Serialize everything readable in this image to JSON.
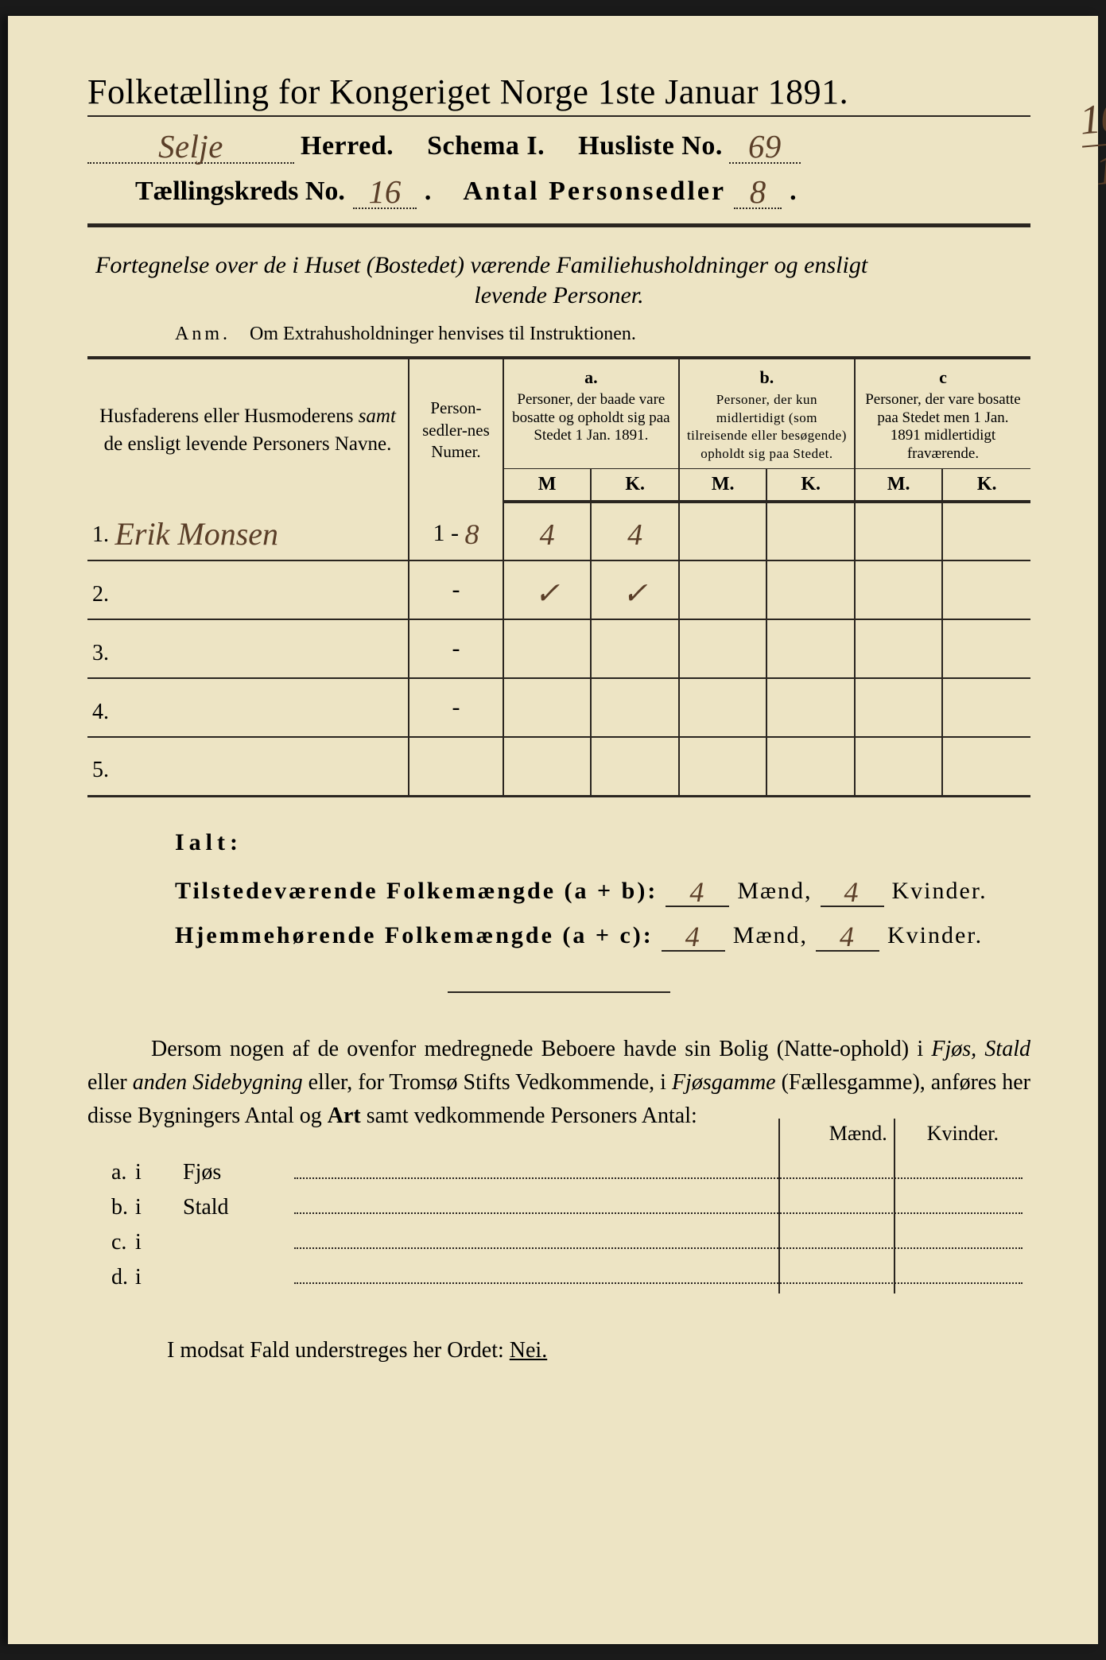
{
  "colors": {
    "paper": "#ede4c4",
    "ink": "#2a2520",
    "handwriting": "#5a3e28",
    "page_outer": "#1a1a1a"
  },
  "typography": {
    "title_fontsize_pt": 44,
    "header_fontsize_pt": 34,
    "body_fontsize_pt": 28,
    "table_header_fontsize_pt": 20,
    "font_family": "Times New Roman / antiqua serif",
    "handwriting_family": "cursive script"
  },
  "title": "Folketælling for Kongeriget Norge 1ste Januar 1891.",
  "header": {
    "herred_handwritten": "Selje",
    "herred_label": "Herred.",
    "schema_label": "Schema I.",
    "husliste_label": "Husliste No.",
    "husliste_no_handwritten": "69",
    "kreds_label": "Tællingskreds No.",
    "kreds_no_handwritten": "16",
    "antal_label": "Antal Personsedler",
    "antal_handwritten": "8",
    "margin_fraction_top": "10",
    "margin_fraction_bottom": "1"
  },
  "subtitle_line1": "Fortegnelse over de i Huset (Bostedet) værende Familiehusholdninger og ensligt",
  "subtitle_line2": "levende Personer.",
  "anm_label": "Anm.",
  "anm_text": "Om Extrahusholdninger henvises til Instruktionen.",
  "table": {
    "col_name_header": "Husfaderens eller Husmoderens samt de ensligt levende Personers Navne.",
    "col_numer_header": "Person-sedler-nes Numer.",
    "col_a_label": "a.",
    "col_a_text": "Personer, der baade vare bosatte og opholdt sig paa Stedet 1 Jan. 1891.",
    "col_b_label": "b.",
    "col_b_text": "Personer, der kun midlertidigt (som tilreisende eller besøgende) opholdt sig paa Stedet.",
    "col_c_label": "c",
    "col_c_text": "Personer, der vare bosatte paa Stedet men 1 Jan. 1891 midlertidigt fraværende.",
    "mk_M": "M",
    "mk_K": "K.",
    "mk_M_dot": "M.",
    "rows": [
      {
        "num": "1.",
        "name_hand": "Erik Monsen",
        "numer": "1 - 8",
        "aM": "4",
        "aK": "4",
        "bM": "",
        "bK": "",
        "cM": "",
        "cK": ""
      },
      {
        "num": "2.",
        "name_hand": "",
        "numer": "-",
        "aM": "✓",
        "aK": "✓",
        "bM": "",
        "bK": "",
        "cM": "",
        "cK": ""
      },
      {
        "num": "3.",
        "name_hand": "",
        "numer": "-",
        "aM": "",
        "aK": "",
        "bM": "",
        "bK": "",
        "cM": "",
        "cK": ""
      },
      {
        "num": "4.",
        "name_hand": "",
        "numer": "-",
        "aM": "",
        "aK": "",
        "bM": "",
        "bK": "",
        "cM": "",
        "cK": ""
      },
      {
        "num": "5.",
        "name_hand": "",
        "numer": "",
        "aM": "",
        "aK": "",
        "bM": "",
        "bK": "",
        "cM": "",
        "cK": ""
      }
    ]
  },
  "ialt": {
    "label": "Ialt:",
    "line1_label": "Tilstedeværende Folkemængde (a + b):",
    "line1_maend": "4",
    "line1_kvinder": "4",
    "line2_label": "Hjemmehørende Folkemængde (a + c):",
    "line2_maend": "4",
    "line2_kvinder": "4",
    "maend_word": "Mænd,",
    "kvinder_word": "Kvinder."
  },
  "paragraph": "Dersom nogen af de ovenfor medregnede Beboere havde sin Bolig (Natte-ophold) i Fjøs, Stald eller anden Sidebygning eller, for Tromsø Stifts Vedkommende, i Fjøsgamme (Fællesgamme), anføres her disse Bygningers Antal og Art samt vedkommende Personers Antal:",
  "abcd": {
    "header_maend": "Mænd.",
    "header_kvinder": "Kvinder.",
    "rows": [
      {
        "lbl": "a.",
        "i": "i",
        "type": "Fjøs"
      },
      {
        "lbl": "b.",
        "i": "i",
        "type": "Stald"
      },
      {
        "lbl": "c.",
        "i": "i",
        "type": ""
      },
      {
        "lbl": "d.",
        "i": "i",
        "type": ""
      }
    ]
  },
  "footer": "I modsat Fald understreges her Ordet:",
  "footer_nei": "Nei."
}
